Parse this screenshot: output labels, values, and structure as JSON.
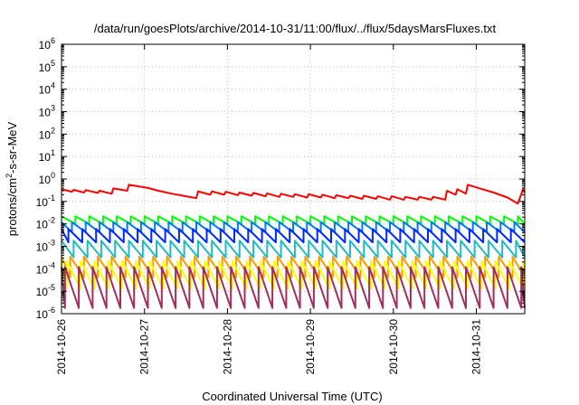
{
  "chart_data": {
    "type": "line",
    "title": "/data/run/goesPlots/archive/2014-10-31/11:00/flux/../flux/5daysMarsFluxes.txt",
    "xlabel": "Coordinated Universal Time (UTC)",
    "ylabel_parts": [
      "protons/cm",
      "2",
      "-s-sr-MeV"
    ],
    "y_scale": "log",
    "ylim": [
      1e-06,
      1000000.0
    ],
    "yticks": [
      {
        "base": "10",
        "exp": "-6",
        "value": 1e-06
      },
      {
        "base": "10",
        "exp": "-5",
        "value": 1e-05
      },
      {
        "base": "10",
        "exp": "-4",
        "value": 0.0001
      },
      {
        "base": "10",
        "exp": "-3",
        "value": 0.001
      },
      {
        "base": "10",
        "exp": "-2",
        "value": 0.01
      },
      {
        "base": "10",
        "exp": "-1",
        "value": 0.1
      },
      {
        "base": "10",
        "exp": "0",
        "value": 1
      },
      {
        "base": "10",
        "exp": "1",
        "value": 10
      },
      {
        "base": "10",
        "exp": "2",
        "value": 100
      },
      {
        "base": "10",
        "exp": "3",
        "value": 1000
      },
      {
        "base": "10",
        "exp": "4",
        "value": 10000
      },
      {
        "base": "10",
        "exp": "5",
        "value": 100000
      },
      {
        "base": "10",
        "exp": "6",
        "value": 1000000
      }
    ],
    "xlim": [
      "2014-10-26",
      "2014-10-31 14:00"
    ],
    "xticks": [
      "2014-10-26",
      "2014-10-27",
      "2014-10-28",
      "2014-10-29",
      "2014-10-30",
      "2014-10-31"
    ],
    "grid": true,
    "legend": "none",
    "series": [
      {
        "color": "#ff0000",
        "points": [
          [
            "2014-10-26 00:00",
            0.35
          ],
          [
            "2014-10-26 03:00",
            0.27
          ],
          [
            "2014-10-26 03:30",
            0.33
          ],
          [
            "2014-10-26 06:30",
            0.25
          ],
          [
            "2014-10-26 07:00",
            0.32
          ],
          [
            "2014-10-26 10:30",
            0.24
          ],
          [
            "2014-10-26 11:00",
            0.3
          ],
          [
            "2014-10-26 14:30",
            0.22
          ],
          [
            "2014-10-26 15:00",
            0.38
          ],
          [
            "2014-10-26 19:00",
            0.3
          ],
          [
            "2014-10-26 19:30",
            0.55
          ],
          [
            "2014-10-27 01:00",
            0.4
          ],
          [
            "2014-10-27 04:00",
            0.3
          ],
          [
            "2014-10-27 08:00",
            0.22
          ],
          [
            "2014-10-27 12:00",
            0.17
          ],
          [
            "2014-10-27 15:00",
            0.14
          ],
          [
            "2014-10-27 15:30",
            0.28
          ],
          [
            "2014-10-27 19:00",
            0.2
          ],
          [
            "2014-10-27 19:30",
            0.28
          ],
          [
            "2014-10-27 23:00",
            0.2
          ],
          [
            "2014-10-27 23:30",
            0.27
          ],
          [
            "2014-10-28 03:00",
            0.19
          ],
          [
            "2014-10-28 03:30",
            0.25
          ],
          [
            "2014-10-28 07:00",
            0.18
          ],
          [
            "2014-10-28 07:30",
            0.24
          ],
          [
            "2014-10-28 11:00",
            0.17
          ],
          [
            "2014-10-28 11:30",
            0.23
          ],
          [
            "2014-10-28 15:00",
            0.16
          ],
          [
            "2014-10-28 15:30",
            0.22
          ],
          [
            "2014-10-28 19:00",
            0.16
          ],
          [
            "2014-10-28 19:30",
            0.21
          ],
          [
            "2014-10-28 23:00",
            0.15
          ],
          [
            "2014-10-28 23:30",
            0.21
          ],
          [
            "2014-10-29 03:00",
            0.15
          ],
          [
            "2014-10-29 03:30",
            0.2
          ],
          [
            "2014-10-29 07:00",
            0.14
          ],
          [
            "2014-10-29 07:30",
            0.19
          ],
          [
            "2014-10-29 11:00",
            0.14
          ],
          [
            "2014-10-29 11:30",
            0.18
          ],
          [
            "2014-10-29 15:00",
            0.13
          ],
          [
            "2014-10-29 15:30",
            0.18
          ],
          [
            "2014-10-29 19:00",
            0.13
          ],
          [
            "2014-10-29 19:30",
            0.17
          ],
          [
            "2014-10-29 23:00",
            0.12
          ],
          [
            "2014-10-29 23:30",
            0.17
          ],
          [
            "2014-10-30 03:00",
            0.12
          ],
          [
            "2014-10-30 03:30",
            0.16
          ],
          [
            "2014-10-30 07:00",
            0.12
          ],
          [
            "2014-10-30 07:30",
            0.16
          ],
          [
            "2014-10-30 11:00",
            0.12
          ],
          [
            "2014-10-30 11:30",
            0.16
          ],
          [
            "2014-10-30 15:00",
            0.12
          ],
          [
            "2014-10-30 15:30",
            0.3
          ],
          [
            "2014-10-30 18:00",
            0.2
          ],
          [
            "2014-10-30 18:30",
            0.35
          ],
          [
            "2014-10-30 21:00",
            0.22
          ],
          [
            "2014-10-30 21:30",
            0.55
          ],
          [
            "2014-10-31 01:00",
            0.38
          ],
          [
            "2014-10-31 05:00",
            0.25
          ],
          [
            "2014-10-31 09:00",
            0.15
          ],
          [
            "2014-10-31 12:00",
            0.08
          ],
          [
            "2014-10-31 12:30",
            0.13
          ],
          [
            "2014-10-31 13:30",
            0.35
          ],
          [
            "2014-10-31 14:00",
            0.25
          ]
        ]
      },
      {
        "color": "#00ff00",
        "base": 0.022,
        "decay": 0.45,
        "period_hours": 4.0,
        "phase": 0.0
      },
      {
        "color": "#0078ff",
        "base": 0.012,
        "decay": 0.35,
        "period_hours": 4.0,
        "phase": 1.0
      },
      {
        "color": "#0028ff",
        "base": 0.006,
        "decay": 0.25,
        "period_hours": 4.0,
        "phase": 2.0
      },
      {
        "color": "#1fbbc3",
        "base": 0.0018,
        "decay": 0.18,
        "period_hours": 4.0,
        "phase": 0.5
      },
      {
        "color": "#ff9900",
        "base": 0.00035,
        "decay": 0.12,
        "period_hours": 4.0,
        "phase": 1.5
      },
      {
        "color": "#ffff00",
        "base": 0.00022,
        "decay": 0.06,
        "period_hours": 4.0,
        "phase": 2.5
      },
      {
        "color": "#a03060",
        "base": 0.00012,
        "decay": 0.015,
        "period_hours": 4.0,
        "phase": 3.0
      }
    ]
  }
}
